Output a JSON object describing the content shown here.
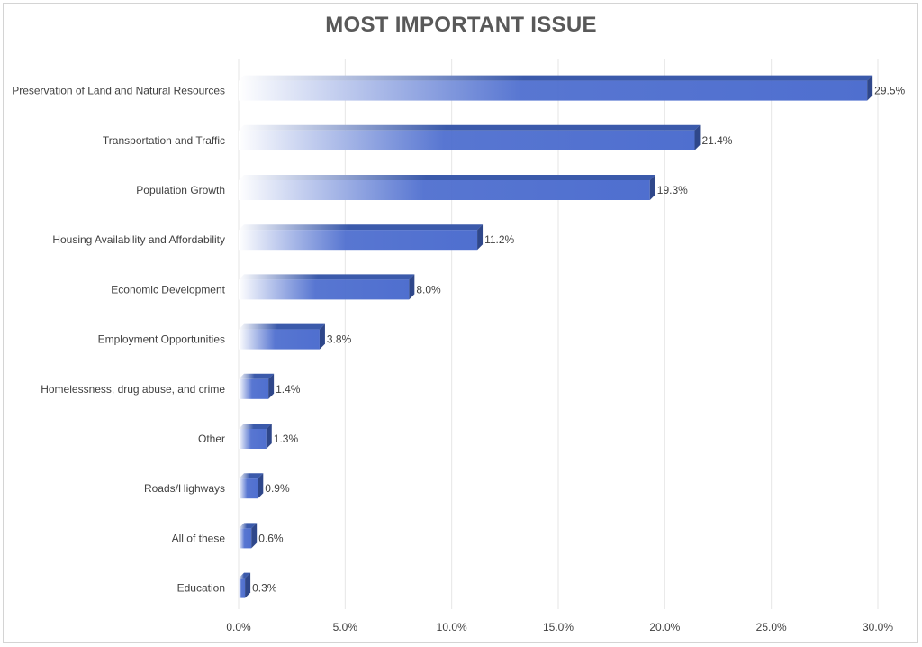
{
  "chart_data": {
    "type": "bar",
    "orientation": "horizontal",
    "title": "MOST IMPORTANT ISSUE",
    "xlabel": "",
    "ylabel": "",
    "categories": [
      "Preservation of Land and Natural Resources",
      "Transportation and Traffic",
      "Population Growth",
      "Housing Availability and Affordability",
      "Economic Development",
      "Employment Opportunities",
      "Homelessness, drug abuse, and crime",
      "Other",
      "Roads/Highways",
      "All of these",
      "Education"
    ],
    "values": [
      29.5,
      21.4,
      19.3,
      11.2,
      8.0,
      3.8,
      1.4,
      1.3,
      0.9,
      0.6,
      0.3
    ],
    "value_labels": [
      "29.5%",
      "21.4%",
      "19.3%",
      "11.2%",
      "8.0%",
      "3.8%",
      "1.4%",
      "1.3%",
      "0.9%",
      "0.6%",
      "0.3%"
    ],
    "x_ticks": [
      0,
      5,
      10,
      15,
      20,
      25,
      30
    ],
    "x_tick_labels": [
      "0.0%",
      "5.0%",
      "10.0%",
      "15.0%",
      "20.0%",
      "25.0%",
      "30.0%"
    ],
    "xlim": [
      0,
      30
    ],
    "grid": true,
    "legend": "none",
    "colors": {
      "bar_front": "#4f6fcf",
      "bar_top": "#3b5aab",
      "bar_side": "#2f478a",
      "grid": "#e6e6e6",
      "title": "#595959",
      "text": "#404040"
    }
  }
}
